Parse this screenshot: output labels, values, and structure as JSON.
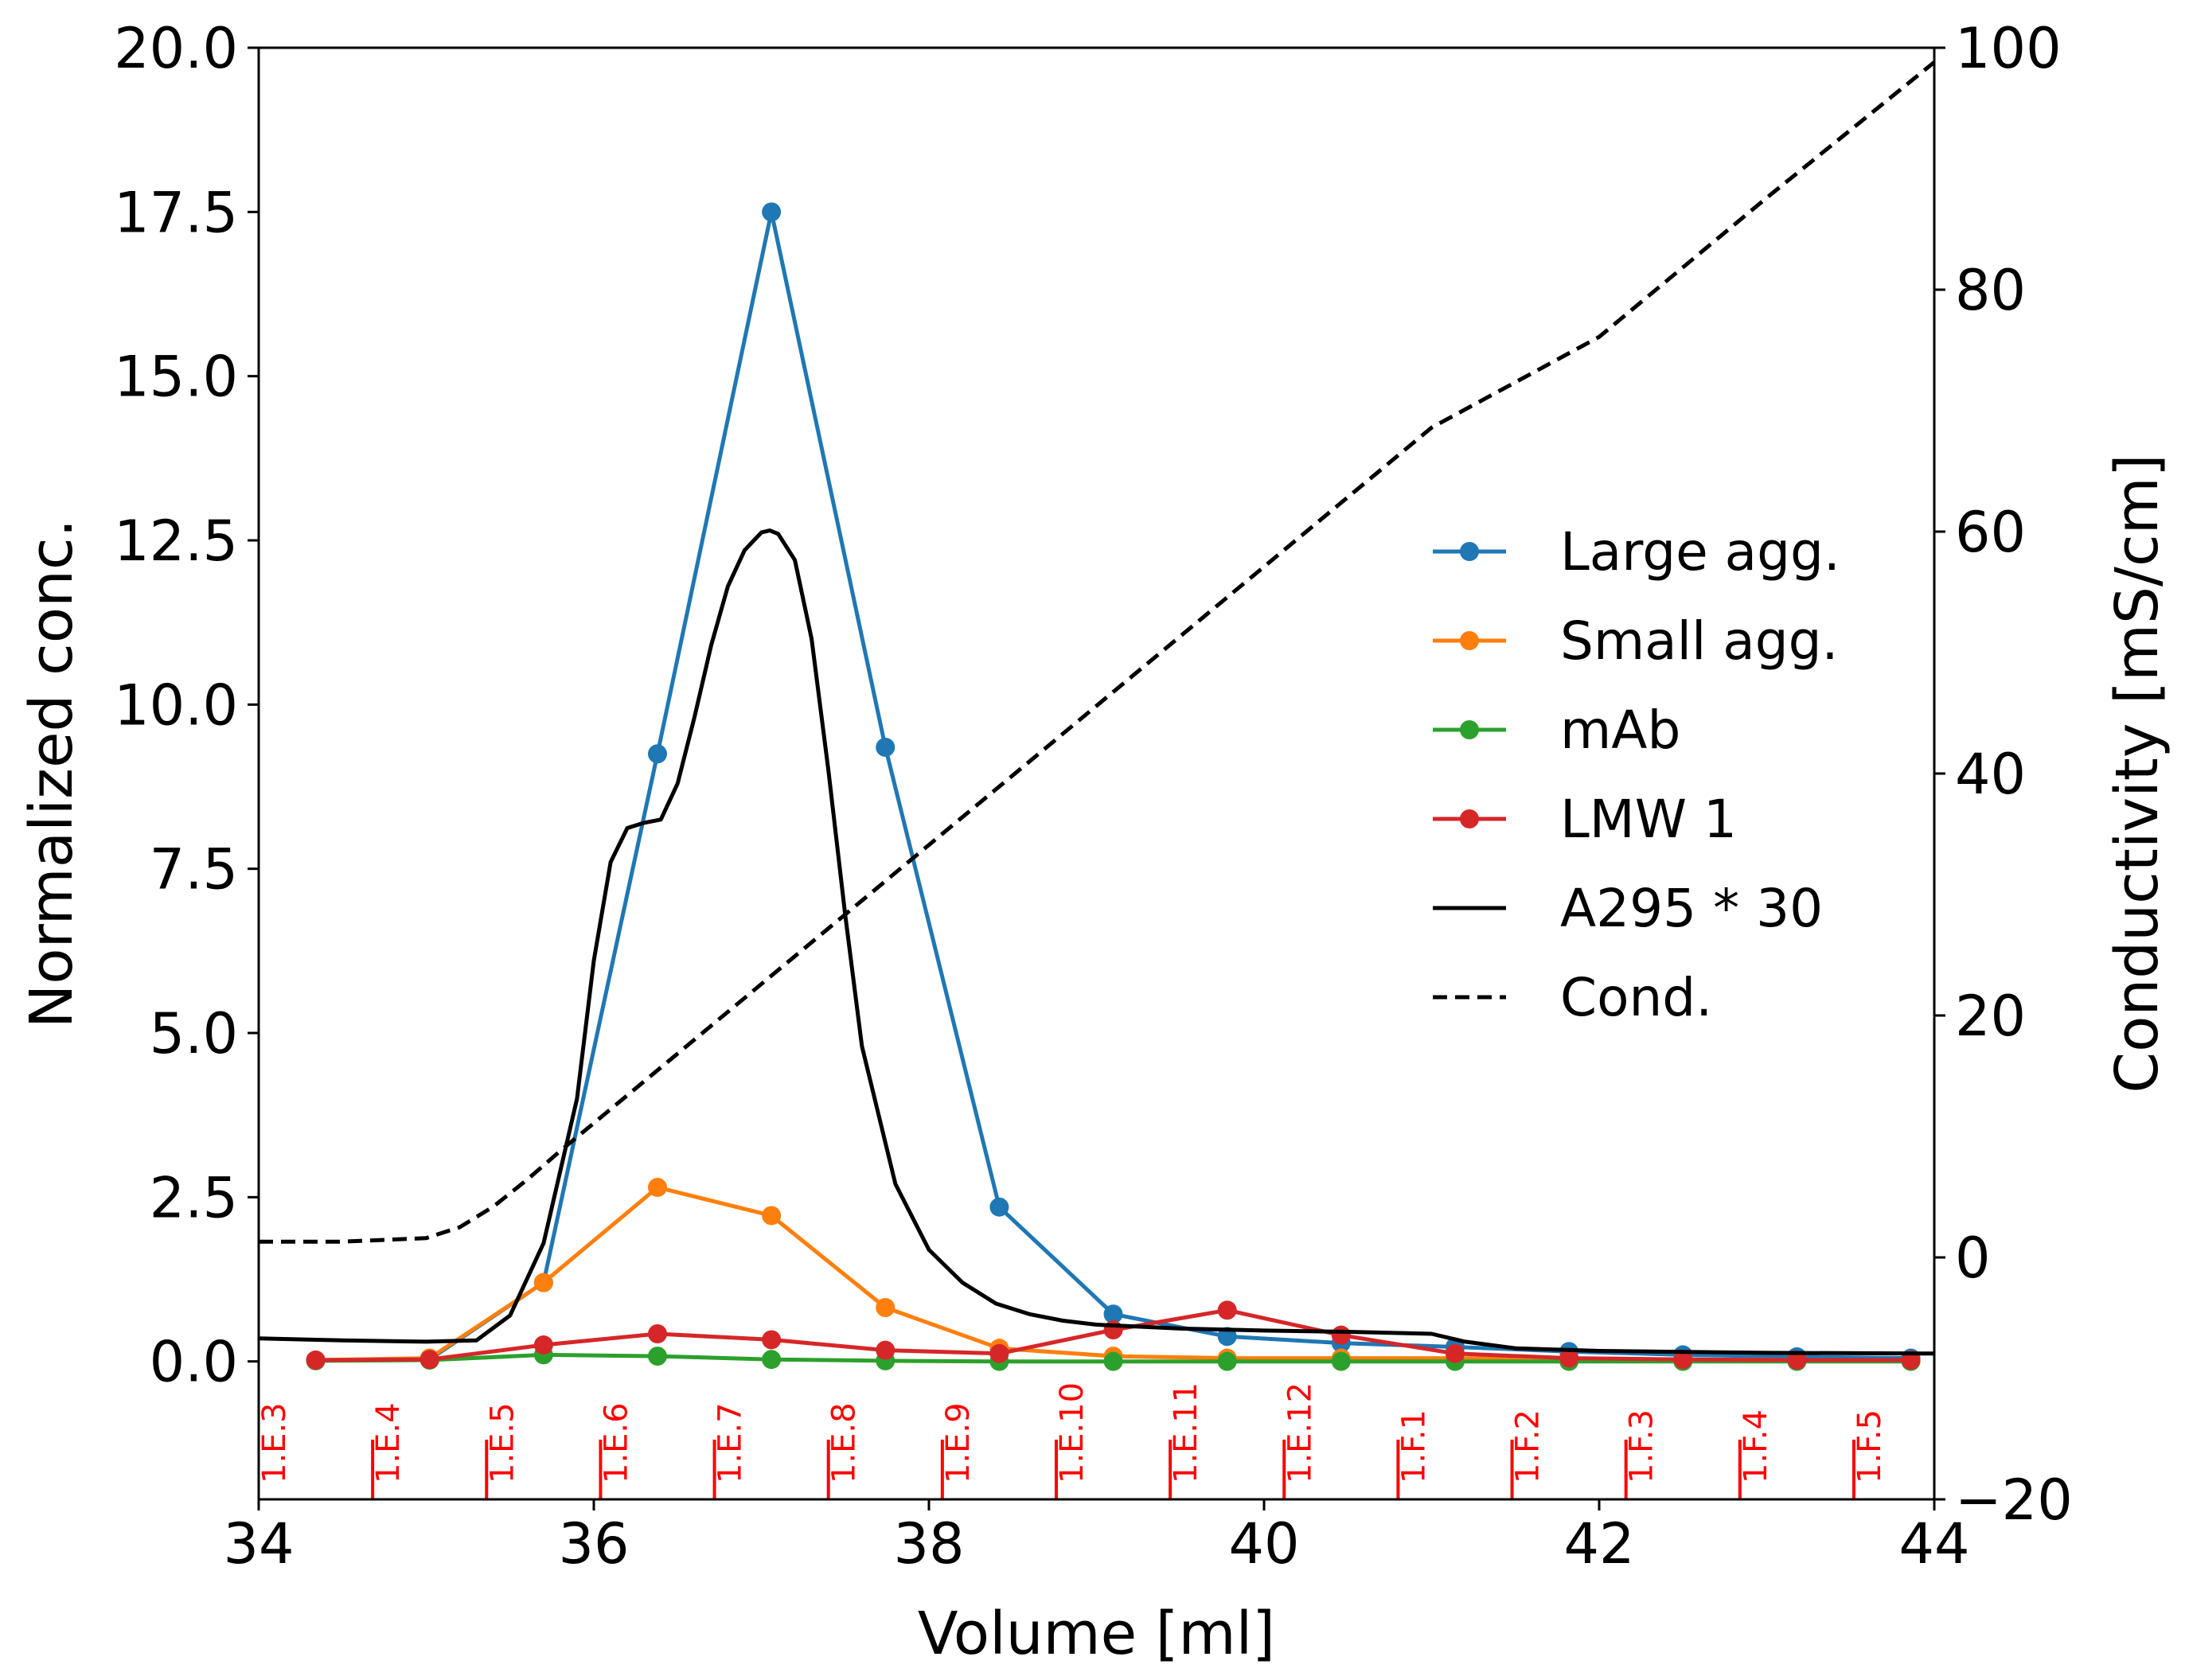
{
  "chart_data": {
    "type": "line",
    "xlabel": "Volume [ml]",
    "ylabel_left": "Normalized conc.",
    "ylabel_right": "Conductivity [mS/cm]",
    "xlim": [
      34,
      44
    ],
    "ylim_left": [
      -2.1,
      20.0
    ],
    "ylim_right": [
      -20,
      100
    ],
    "x_ticks": [
      34,
      36,
      38,
      40,
      42,
      44
    ],
    "y_left_ticks": [
      "0.0",
      "2.5",
      "5.0",
      "7.5",
      "10.0",
      "12.5",
      "15.0",
      "17.5",
      "20.0"
    ],
    "y_right_ticks": [
      "−20",
      "0",
      "20",
      "40",
      "60",
      "80",
      "100"
    ],
    "grid": false,
    "legend_position": "center-right",
    "series": [
      {
        "name": "Large agg.",
        "color": "#1f77b4",
        "style": "line-marker",
        "axis": "left",
        "x": [
          34.34,
          35.02,
          35.7,
          36.38,
          37.06,
          37.74,
          38.42,
          39.1,
          39.78,
          40.46,
          41.14,
          41.82,
          42.5,
          43.18,
          43.86
        ],
        "y": [
          0.02,
          0.03,
          1.2,
          9.25,
          17.5,
          9.35,
          2.35,
          0.72,
          0.38,
          0.28,
          0.22,
          0.15,
          0.1,
          0.07,
          0.05
        ]
      },
      {
        "name": "Small agg.",
        "color": "#ff7f0e",
        "style": "line-marker",
        "axis": "left",
        "x": [
          34.34,
          35.02,
          35.7,
          36.38,
          37.06,
          37.74,
          38.42,
          39.1,
          39.78,
          40.46,
          41.14,
          41.82,
          42.5,
          43.18,
          43.86
        ],
        "y": [
          0.02,
          0.05,
          1.2,
          2.65,
          2.22,
          0.82,
          0.2,
          0.08,
          0.05,
          0.05,
          0.05,
          0.04,
          0.03,
          0.02,
          0.02
        ]
      },
      {
        "name": "mAb",
        "color": "#2ca02c",
        "style": "line-marker",
        "axis": "left",
        "x": [
          34.34,
          35.02,
          35.7,
          36.38,
          37.06,
          37.74,
          38.42,
          39.1,
          39.78,
          40.46,
          41.14,
          41.82,
          42.5,
          43.18,
          43.86
        ],
        "y": [
          0.01,
          0.02,
          0.1,
          0.08,
          0.03,
          0.01,
          0.0,
          0.0,
          0.0,
          0.0,
          0.0,
          0.0,
          0.0,
          0.0,
          0.0
        ]
      },
      {
        "name": "LMW 1",
        "color": "#d62728",
        "style": "line-marker",
        "axis": "left",
        "x": [
          34.34,
          35.02,
          35.7,
          36.38,
          37.06,
          37.74,
          38.42,
          39.1,
          39.78,
          40.46,
          41.14,
          41.82,
          42.5,
          43.18,
          43.86
        ],
        "y": [
          0.02,
          0.03,
          0.25,
          0.42,
          0.33,
          0.17,
          0.12,
          0.48,
          0.78,
          0.4,
          0.12,
          0.05,
          0.03,
          0.02,
          0.02
        ]
      },
      {
        "name": "A295 * 30",
        "color": "#000000",
        "style": "solid",
        "axis": "left",
        "x": [
          34.0,
          34.5,
          35.0,
          35.3,
          35.5,
          35.7,
          35.9,
          36.0,
          36.1,
          36.2,
          36.3,
          36.4,
          36.5,
          36.6,
          36.7,
          36.8,
          36.9,
          37.0,
          37.05,
          37.1,
          37.2,
          37.3,
          37.4,
          37.5,
          37.6,
          37.8,
          38.0,
          38.2,
          38.4,
          38.6,
          38.8,
          39.0,
          39.5,
          40.0,
          40.5,
          41.0,
          41.2,
          41.5,
          42.0,
          43.0,
          44.0
        ],
        "y": [
          0.35,
          0.32,
          0.3,
          0.32,
          0.7,
          1.8,
          4.0,
          6.1,
          7.6,
          8.12,
          8.2,
          8.25,
          8.8,
          9.8,
          10.9,
          11.8,
          12.35,
          12.62,
          12.65,
          12.6,
          12.2,
          11.0,
          9.0,
          6.8,
          4.8,
          2.7,
          1.7,
          1.2,
          0.88,
          0.72,
          0.62,
          0.56,
          0.5,
          0.47,
          0.45,
          0.42,
          0.3,
          0.2,
          0.16,
          0.13,
          0.12
        ]
      },
      {
        "name": "Cond.",
        "color": "#000000",
        "style": "dashed",
        "axis": "right",
        "x": [
          34.0,
          34.5,
          35.0,
          35.2,
          35.4,
          35.6,
          35.8,
          36.0,
          37.0,
          38.0,
          39.0,
          40.0,
          41.0,
          42.0,
          43.0,
          44.0
        ],
        "y": [
          1.3,
          1.3,
          1.6,
          2.5,
          4.2,
          6.4,
          8.8,
          11.1,
          22.6,
          34.1,
          45.6,
          57.1,
          68.6,
          76.1,
          87.6,
          98.8
        ]
      }
    ],
    "fractions": {
      "color": "#ff0000",
      "boundaries": [
        34.0,
        34.68,
        35.36,
        36.04,
        36.72,
        37.4,
        38.08,
        38.76,
        39.44,
        40.12,
        40.8,
        41.48,
        42.16,
        42.84,
        43.52
      ],
      "labels": [
        "1.E.3",
        "1.E.4",
        "1.E.5",
        "1.E.6",
        "1.E.7",
        "1.E.8",
        "1.E.9",
        "1.E.10",
        "1.E.11",
        "1.E.12",
        "1.F.1",
        "1.F.2",
        "1.F.3",
        "1.F.4",
        "1.F.5"
      ]
    }
  }
}
